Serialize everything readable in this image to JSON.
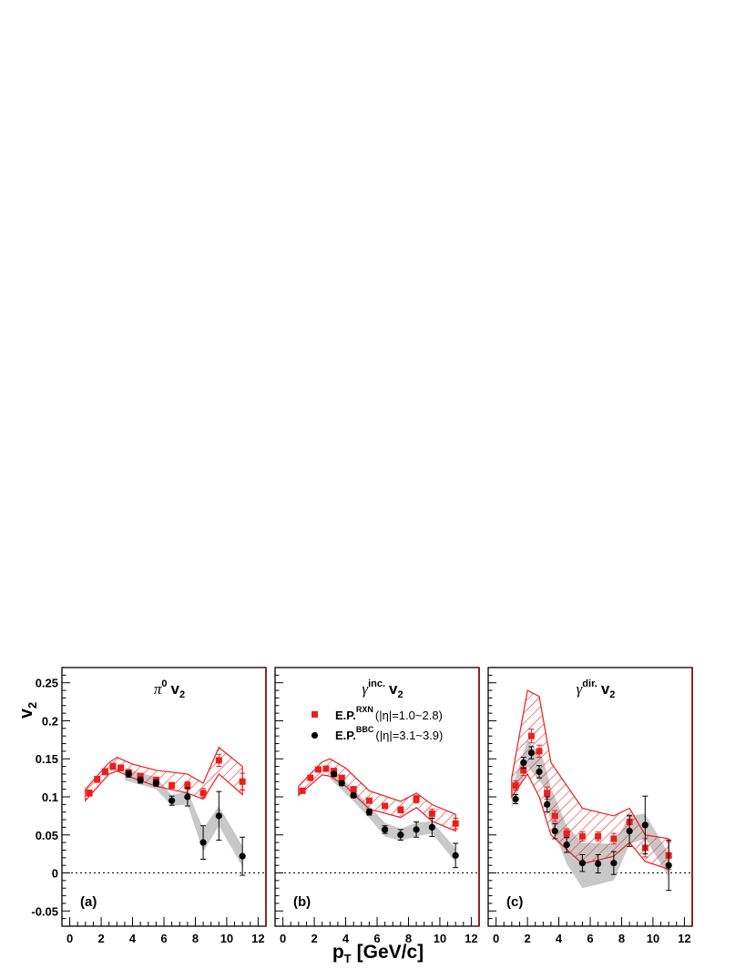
{
  "figure": {
    "ylabel": "v",
    "ylabel_sub": "2",
    "xlabel": "p",
    "xlabel_sub": "T",
    "xlabel_unit": "[GeV/c]",
    "xticks": [
      "0",
      "2",
      "4",
      "6",
      "8",
      "10",
      "12"
    ],
    "yticks": [
      "-0.05",
      "0",
      "0.05",
      "0.1",
      "0.15",
      "0.2",
      "0.25"
    ]
  },
  "legend": {
    "rxn_label": "E.P.",
    "rxn_sup": "RXN",
    "rxn_range": "(|η|=1.0~2.8)",
    "bbc_label": "E.P.",
    "bbc_sup": "BBC",
    "bbc_range": "(|η|=3.1~3.9)"
  },
  "colors": {
    "rxn": "#ee1c1c",
    "bbc": "#000000",
    "bbc_band": "#c8c8c8",
    "frame": "#000000",
    "frame_right": "#8b0000"
  },
  "chart_data": [
    {
      "type": "scatter",
      "panel": "(a)",
      "title": "π",
      "title_sup": "0",
      "title_suffix": "v",
      "title_sub": "2",
      "xlim": [
        -0.5,
        12.5
      ],
      "ylim": [
        -0.07,
        0.27
      ],
      "series": [
        {
          "name": "E.P.RXN (|η|=1.0~2.8)",
          "x": [
            1.25,
            1.75,
            2.25,
            2.75,
            3.25,
            3.75,
            4.5,
            5.5,
            6.5,
            7.5,
            8.5,
            9.5,
            11.0
          ],
          "y": [
            0.105,
            0.123,
            0.133,
            0.14,
            0.138,
            0.132,
            0.127,
            0.122,
            0.115,
            0.115,
            0.105,
            0.148,
            0.12
          ],
          "err": [
            0.004,
            0.004,
            0.004,
            0.004,
            0.004,
            0.004,
            0.004,
            0.004,
            0.004,
            0.005,
            0.006,
            0.008,
            0.011
          ]
        },
        {
          "name": "E.P.BBC (|η|=3.1~3.9)",
          "x": [
            3.75,
            4.5,
            5.5,
            6.5,
            7.5,
            8.5,
            9.5,
            11.0
          ],
          "y": [
            0.13,
            0.122,
            0.118,
            0.095,
            0.1,
            0.04,
            0.075,
            0.022
          ],
          "err": [
            0.004,
            0.004,
            0.004,
            0.006,
            0.012,
            0.022,
            0.032,
            0.025
          ]
        }
      ],
      "rxn_band_upper": [
        [
          1.0,
          0.11
        ],
        [
          2.5,
          0.145
        ],
        [
          3.0,
          0.152
        ],
        [
          4.0,
          0.143
        ],
        [
          5.5,
          0.135
        ],
        [
          7.5,
          0.13
        ],
        [
          8.5,
          0.118
        ],
        [
          9.5,
          0.165
        ],
        [
          11.0,
          0.14
        ]
      ],
      "rxn_band_lower": [
        [
          1.0,
          0.095
        ],
        [
          2.5,
          0.13
        ],
        [
          3.0,
          0.134
        ],
        [
          4.0,
          0.125
        ],
        [
          5.5,
          0.114
        ],
        [
          7.5,
          0.105
        ],
        [
          8.5,
          0.097
        ],
        [
          9.5,
          0.13
        ],
        [
          11.0,
          0.103
        ]
      ],
      "bbc_band_upper": [
        [
          3.5,
          0.137
        ],
        [
          5.5,
          0.126
        ],
        [
          6.5,
          0.102
        ],
        [
          7.5,
          0.108
        ],
        [
          8.5,
          0.058
        ],
        [
          9.5,
          0.088
        ],
        [
          11.0,
          0.035
        ]
      ],
      "bbc_band_lower": [
        [
          3.5,
          0.122
        ],
        [
          5.5,
          0.11
        ],
        [
          6.5,
          0.088
        ],
        [
          7.5,
          0.09
        ],
        [
          8.5,
          0.028
        ],
        [
          9.5,
          0.062
        ],
        [
          11.0,
          0.008
        ]
      ]
    },
    {
      "type": "scatter",
      "panel": "(b)",
      "title": "γ",
      "title_sup": "inc.",
      "title_suffix": "v",
      "title_sub": "2",
      "xlim": [
        -0.5,
        12.5
      ],
      "ylim": [
        -0.07,
        0.27
      ],
      "series": [
        {
          "name": "E.P.RXN (|η|=1.0~2.8)",
          "x": [
            1.25,
            1.75,
            2.25,
            2.75,
            3.25,
            3.75,
            4.5,
            5.5,
            6.5,
            7.5,
            8.5,
            9.5,
            11.0
          ],
          "y": [
            0.108,
            0.125,
            0.136,
            0.137,
            0.134,
            0.125,
            0.11,
            0.095,
            0.088,
            0.083,
            0.097,
            0.078,
            0.065
          ],
          "err": [
            0.003,
            0.003,
            0.003,
            0.003,
            0.003,
            0.003,
            0.003,
            0.003,
            0.003,
            0.004,
            0.005,
            0.006,
            0.007
          ]
        },
        {
          "name": "E.P.BBC (|η|=3.1~3.9)",
          "x": [
            3.25,
            3.75,
            4.5,
            5.5,
            6.5,
            7.5,
            8.5,
            9.5,
            11.0
          ],
          "y": [
            0.13,
            0.118,
            0.102,
            0.08,
            0.057,
            0.05,
            0.057,
            0.06,
            0.023
          ],
          "err": [
            0.003,
            0.003,
            0.003,
            0.004,
            0.005,
            0.007,
            0.01,
            0.012,
            0.016
          ]
        }
      ],
      "rxn_band_upper": [
        [
          1.0,
          0.114
        ],
        [
          2.5,
          0.146
        ],
        [
          3.0,
          0.15
        ],
        [
          4.0,
          0.138
        ],
        [
          5.5,
          0.108
        ],
        [
          7.5,
          0.094
        ],
        [
          8.5,
          0.105
        ],
        [
          9.5,
          0.09
        ],
        [
          11.0,
          0.077
        ]
      ],
      "rxn_band_lower": [
        [
          1.0,
          0.102
        ],
        [
          2.5,
          0.129
        ],
        [
          3.0,
          0.127
        ],
        [
          4.0,
          0.114
        ],
        [
          5.5,
          0.084
        ],
        [
          7.5,
          0.073
        ],
        [
          8.5,
          0.086
        ],
        [
          9.5,
          0.068
        ],
        [
          11.0,
          0.055
        ]
      ],
      "bbc_band_upper": [
        [
          3.0,
          0.138
        ],
        [
          4.5,
          0.11
        ],
        [
          5.5,
          0.088
        ],
        [
          6.5,
          0.066
        ],
        [
          7.5,
          0.058
        ],
        [
          8.5,
          0.066
        ],
        [
          9.5,
          0.068
        ],
        [
          11.0,
          0.032
        ]
      ],
      "bbc_band_lower": [
        [
          3.0,
          0.124
        ],
        [
          4.5,
          0.094
        ],
        [
          5.5,
          0.072
        ],
        [
          6.5,
          0.048
        ],
        [
          7.5,
          0.042
        ],
        [
          8.5,
          0.048
        ],
        [
          9.5,
          0.052
        ],
        [
          11.0,
          0.014
        ]
      ]
    },
    {
      "type": "scatter",
      "panel": "(c)",
      "title": "γ",
      "title_sup": "dir.",
      "title_suffix": "v",
      "title_sub": "2",
      "xlim": [
        -0.5,
        12.5
      ],
      "ylim": [
        -0.07,
        0.27
      ],
      "series": [
        {
          "name": "E.P.RXN (|η|=1.0~2.8)",
          "x": [
            1.25,
            1.75,
            2.25,
            2.75,
            3.25,
            3.75,
            4.5,
            5.5,
            6.5,
            7.5,
            8.5,
            9.5,
            11.0
          ],
          "y": [
            0.115,
            0.135,
            0.18,
            0.16,
            0.105,
            0.075,
            0.052,
            0.048,
            0.048,
            0.045,
            0.067,
            0.033,
            0.023
          ],
          "err": [
            0.006,
            0.007,
            0.009,
            0.008,
            0.008,
            0.007,
            0.006,
            0.006,
            0.006,
            0.007,
            0.009,
            0.012,
            0.018
          ]
        },
        {
          "name": "E.P.BBC (|η|=3.1~3.9)",
          "x": [
            1.25,
            1.75,
            2.25,
            2.75,
            3.25,
            3.75,
            4.5,
            5.5,
            6.5,
            7.5,
            8.5,
            9.5,
            11.0
          ],
          "y": [
            0.097,
            0.145,
            0.158,
            0.133,
            0.09,
            0.055,
            0.037,
            0.013,
            0.012,
            0.013,
            0.055,
            0.063,
            0.01
          ],
          "err": [
            0.006,
            0.007,
            0.008,
            0.008,
            0.01,
            0.01,
            0.01,
            0.011,
            0.012,
            0.015,
            0.02,
            0.038,
            0.033
          ]
        }
      ],
      "rxn_band_upper": [
        [
          1.0,
          0.125
        ],
        [
          2.0,
          0.24
        ],
        [
          2.75,
          0.232
        ],
        [
          3.5,
          0.145
        ],
        [
          5.5,
          0.085
        ],
        [
          7.5,
          0.075
        ],
        [
          8.5,
          0.085
        ],
        [
          9.5,
          0.05
        ],
        [
          11.0,
          0.045
        ]
      ],
      "rxn_band_lower": [
        [
          1.0,
          0.1
        ],
        [
          2.0,
          0.13
        ],
        [
          2.75,
          0.1
        ],
        [
          3.5,
          0.05
        ],
        [
          5.5,
          0.012
        ],
        [
          7.5,
          0.022
        ],
        [
          8.5,
          0.04
        ],
        [
          9.5,
          0.015
        ],
        [
          11.0,
          0.005
        ]
      ],
      "bbc_band_upper": [
        [
          1.0,
          0.11
        ],
        [
          2.0,
          0.175
        ],
        [
          3.0,
          0.15
        ],
        [
          3.5,
          0.112
        ],
        [
          4.5,
          0.062
        ],
        [
          5.5,
          0.04
        ],
        [
          7.5,
          0.038
        ],
        [
          8.5,
          0.075
        ],
        [
          9.5,
          0.078
        ],
        [
          11.0,
          0.025
        ]
      ],
      "bbc_band_lower": [
        [
          1.0,
          0.085
        ],
        [
          2.0,
          0.14
        ],
        [
          3.0,
          0.115
        ],
        [
          3.5,
          0.065
        ],
        [
          4.5,
          0.012
        ],
        [
          5.5,
          -0.02
        ],
        [
          7.5,
          -0.01
        ],
        [
          8.5,
          0.038
        ],
        [
          9.5,
          0.045
        ],
        [
          11.0,
          -0.005
        ]
      ]
    }
  ]
}
